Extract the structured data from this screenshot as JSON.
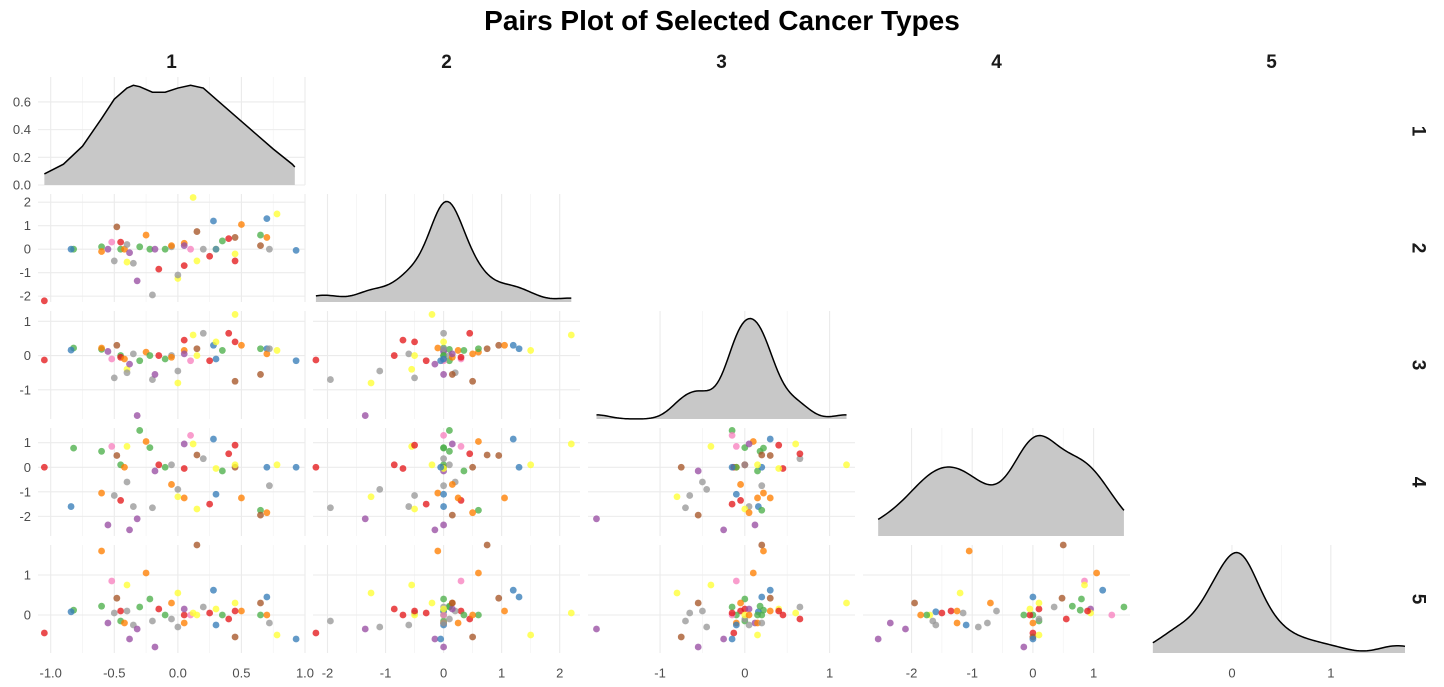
{
  "chart_data": {
    "type": "scatter",
    "title": "Pairs Plot of Selected Cancer Types",
    "variables": [
      "1",
      "2",
      "3",
      "4",
      "5"
    ],
    "layout": "lower-triangle scatter panels with density curves on the diagonal",
    "grid": true,
    "point_palette": [
      "#e41a1c",
      "#377eb8",
      "#4daf4a",
      "#984ea3",
      "#ff7f00",
      "#ffff33",
      "#a65628",
      "#f781bf",
      "#999999"
    ],
    "density_fill": "#c8c8c8",
    "axis_ticks": {
      "1": [
        -1.0,
        -0.5,
        0.0,
        0.5,
        1.0
      ],
      "2": [
        -2,
        -1,
        0,
        1,
        2
      ],
      "3": [
        -1,
        0,
        1
      ],
      "4": [
        -2,
        -1,
        0,
        1
      ],
      "5": [
        0,
        1
      ]
    },
    "axis_tick_labels": {
      "1": [
        "-1.0",
        "-0.5",
        "0.0",
        "0.5",
        "1.0"
      ],
      "2": [
        "-2",
        "-1",
        "0",
        "1",
        "2"
      ],
      "3": [
        "-1",
        "0",
        "1"
      ],
      "4": [
        "-2",
        "-1",
        "0",
        "1"
      ],
      "5": [
        "0",
        "1"
      ]
    },
    "axis_ranges": {
      "1": [
        -1.1,
        1.0
      ],
      "2": [
        -2.25,
        2.35
      ],
      "3": [
        -1.85,
        1.3
      ],
      "4": [
        -2.8,
        1.6
      ],
      "5": [
        -0.95,
        1.75
      ]
    },
    "density_ylabels": [
      "0.0",
      "0.2",
      "0.4",
      "0.6"
    ],
    "density_yticks": [
      0.0,
      0.2,
      0.4,
      0.6
    ],
    "density_ymax": 0.78,
    "density_1": {
      "x": [
        -1.05,
        -0.9,
        -0.75,
        -0.6,
        -0.5,
        -0.4,
        -0.35,
        -0.3,
        -0.2,
        -0.1,
        0.0,
        0.1,
        0.2,
        0.3,
        0.45,
        0.6,
        0.75,
        0.9,
        0.92
      ],
      "y": [
        0.08,
        0.15,
        0.28,
        0.48,
        0.62,
        0.7,
        0.72,
        0.71,
        0.67,
        0.67,
        0.7,
        0.72,
        0.7,
        0.62,
        0.5,
        0.38,
        0.26,
        0.15,
        0.13
      ]
    },
    "points": [
      {
        "c": 0,
        "v": [
          -1.05,
          -2.2,
          -0.13,
          0.0,
          -0.45
        ]
      },
      {
        "c": 2,
        "v": [
          -0.82,
          0.0,
          0.22,
          0.78,
          0.12
        ]
      },
      {
        "c": 1,
        "v": [
          -0.84,
          0.0,
          0.16,
          -1.6,
          0.08
        ]
      },
      {
        "c": 2,
        "v": [
          -0.6,
          0.1,
          0.18,
          0.65,
          0.22
        ]
      },
      {
        "c": 4,
        "v": [
          -0.6,
          -0.1,
          0.22,
          -1.05,
          1.6
        ]
      },
      {
        "c": 3,
        "v": [
          -0.55,
          0.0,
          0.12,
          -2.35,
          -0.2
        ]
      },
      {
        "c": 7,
        "v": [
          -0.52,
          0.3,
          -0.1,
          0.85,
          0.85
        ]
      },
      {
        "c": 8,
        "v": [
          -0.5,
          -0.5,
          -0.65,
          -1.15,
          0.05
        ]
      },
      {
        "c": 6,
        "v": [
          -0.48,
          0.95,
          0.3,
          0.48,
          0.42
        ]
      },
      {
        "c": 2,
        "v": [
          -0.45,
          0.0,
          0.0,
          0.1,
          -0.15
        ]
      },
      {
        "c": 0,
        "v": [
          -0.45,
          0.3,
          -0.05,
          -1.35,
          0.1
        ]
      },
      {
        "c": 4,
        "v": [
          -0.42,
          0.0,
          -0.1,
          0.0,
          -0.2
        ]
      },
      {
        "c": 5,
        "v": [
          -0.4,
          -0.55,
          -0.4,
          0.85,
          0.75
        ]
      },
      {
        "c": 8,
        "v": [
          -0.4,
          0.2,
          -0.5,
          -0.6,
          0.1
        ]
      },
      {
        "c": 3,
        "v": [
          -0.38,
          -0.15,
          -0.25,
          -2.55,
          -0.6
        ]
      },
      {
        "c": 8,
        "v": [
          -0.35,
          -0.6,
          0.05,
          -1.6,
          -0.25
        ]
      },
      {
        "c": 3,
        "v": [
          -0.32,
          -1.35,
          -1.75,
          -2.1,
          -0.35
        ]
      },
      {
        "c": 2,
        "v": [
          -0.3,
          0.1,
          -0.15,
          1.5,
          0.2
        ]
      },
      {
        "c": 4,
        "v": [
          -0.25,
          0.6,
          0.1,
          1.05,
          1.05
        ]
      },
      {
        "c": 2,
        "v": [
          -0.22,
          0.0,
          0.0,
          0.8,
          0.4
        ]
      },
      {
        "c": 8,
        "v": [
          -0.2,
          -1.95,
          -0.7,
          -1.65,
          -0.15
        ]
      },
      {
        "c": 3,
        "v": [
          -0.18,
          0.0,
          -0.55,
          -0.15,
          -0.8
        ]
      },
      {
        "c": 0,
        "v": [
          -0.15,
          -0.85,
          0.0,
          0.1,
          0.15
        ]
      },
      {
        "c": 2,
        "v": [
          -0.1,
          0.0,
          -0.1,
          0.0,
          0.0
        ]
      },
      {
        "c": 8,
        "v": [
          -0.05,
          0.1,
          0.0,
          0.1,
          -0.1
        ]
      },
      {
        "c": 4,
        "v": [
          -0.05,
          0.15,
          -0.05,
          -0.7,
          0.3
        ]
      },
      {
        "c": 5,
        "v": [
          0.0,
          -1.25,
          -0.8,
          -1.2,
          0.55
        ]
      },
      {
        "c": 8,
        "v": [
          0.0,
          -1.1,
          -0.45,
          -0.9,
          -0.3
        ]
      },
      {
        "c": 0,
        "v": [
          0.05,
          -0.7,
          0.45,
          -0.05,
          0.0
        ]
      },
      {
        "c": 4,
        "v": [
          0.05,
          0.25,
          0.15,
          -1.25,
          -0.2
        ]
      },
      {
        "c": 3,
        "v": [
          0.05,
          0.15,
          0.05,
          0.95,
          0.15
        ]
      },
      {
        "c": 7,
        "v": [
          0.1,
          0.0,
          -0.15,
          1.3,
          0.0
        ]
      },
      {
        "c": 5,
        "v": [
          0.12,
          2.2,
          0.6,
          0.95,
          0.05
        ]
      },
      {
        "c": 6,
        "v": [
          0.15,
          0.75,
          0.2,
          0.5,
          1.75
        ]
      },
      {
        "c": 5,
        "v": [
          0.15,
          -0.5,
          0.0,
          -1.7,
          0.0
        ]
      },
      {
        "c": 8,
        "v": [
          0.2,
          0.0,
          0.65,
          0.35,
          0.2
        ]
      },
      {
        "c": 0,
        "v": [
          0.25,
          -0.3,
          -0.15,
          -1.5,
          0.05
        ]
      },
      {
        "c": 1,
        "v": [
          0.28,
          1.2,
          0.3,
          1.15,
          0.62
        ]
      },
      {
        "c": 5,
        "v": [
          0.3,
          0.0,
          0.4,
          -0.05,
          0.15
        ]
      },
      {
        "c": 1,
        "v": [
          0.3,
          0.0,
          -0.1,
          -1.1,
          -0.25
        ]
      },
      {
        "c": 2,
        "v": [
          0.35,
          0.35,
          0.15,
          -0.15,
          0.0
        ]
      },
      {
        "c": 0,
        "v": [
          0.4,
          0.45,
          0.65,
          0.55,
          -0.1
        ]
      },
      {
        "c": 6,
        "v": [
          0.45,
          0.5,
          -0.75,
          0.0,
          -0.55
        ]
      },
      {
        "c": 5,
        "v": [
          0.45,
          -0.2,
          1.2,
          0.1,
          0.3
        ]
      },
      {
        "c": 4,
        "v": [
          0.5,
          1.05,
          0.3,
          -1.25,
          0.1
        ]
      },
      {
        "c": 0,
        "v": [
          0.45,
          -0.5,
          0.4,
          0.9,
          0.1
        ]
      },
      {
        "c": 2,
        "v": [
          0.65,
          0.6,
          0.2,
          -1.75,
          0.0
        ]
      },
      {
        "c": 6,
        "v": [
          0.65,
          0.15,
          -0.55,
          -1.95,
          0.3
        ]
      },
      {
        "c": 1,
        "v": [
          0.7,
          1.3,
          0.2,
          0.0,
          0.45
        ]
      },
      {
        "c": 4,
        "v": [
          0.7,
          0.5,
          0.05,
          -1.85,
          0.0
        ]
      },
      {
        "c": 8,
        "v": [
          0.72,
          0.0,
          0.2,
          -0.75,
          -0.2
        ]
      },
      {
        "c": 5,
        "v": [
          0.78,
          1.5,
          0.15,
          0.1,
          -0.5
        ]
      },
      {
        "c": 1,
        "v": [
          0.93,
          -0.05,
          -0.15,
          0.0,
          -0.6
        ]
      }
    ]
  }
}
